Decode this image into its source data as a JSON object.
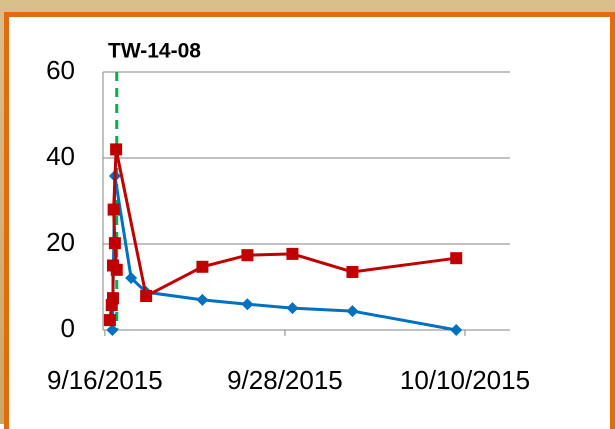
{
  "chart_data": {
    "type": "line",
    "title": "TW-14-08",
    "xlim": [
      "2015-09-15T21:00",
      "2015-10-13T00:00"
    ],
    "xticks": [
      {
        "value": "2015-09-16T00:00",
        "label": "9/16/2015"
      },
      {
        "value": "2015-09-28T00:00",
        "label": "9/28/2015"
      },
      {
        "value": "2015-10-10T00:00",
        "label": "10/10/2015"
      }
    ],
    "ylim": [
      0,
      60
    ],
    "yticks": [
      0,
      20,
      40,
      60
    ],
    "grid": true,
    "vline": {
      "x": "2015-09-16T19:00",
      "color": "#00b050"
    },
    "series": [
      {
        "color": "#0070c0",
        "marker": "diamond",
        "x": [
          "2015-09-16T12:00",
          "2015-09-16T16:00",
          "2015-09-17T18:00",
          "2015-09-18T18:00",
          "2015-09-22T12:00",
          "2015-09-25T12:00",
          "2015-09-28T12:00",
          "2015-10-02T12:00",
          "2015-10-09T10:00"
        ],
        "values": [
          0,
          35.8,
          12.1,
          8.8,
          7.0,
          6.0,
          5.1,
          4.4,
          0
        ]
      },
      {
        "color": "#c00000",
        "marker": "square",
        "x": [
          "2015-09-16T08:00",
          "2015-09-16T11:00",
          "2015-09-16T13:00",
          "2015-09-16T13:00",
          "2015-09-16T19:00",
          "2015-09-16T16:00",
          "2015-09-16T14:00",
          "2015-09-16T18:00",
          "2015-09-18T18:00",
          "2015-09-22T12:00",
          "2015-09-25T12:00",
          "2015-09-28T12:00",
          "2015-10-02T12:00",
          "2015-10-09T10:00"
        ],
        "values": [
          2.3,
          5.8,
          7.4,
          15,
          14,
          20.2,
          28,
          42,
          7.9,
          14.7,
          17.4,
          17.7,
          13.5,
          16.7
        ]
      }
    ]
  }
}
